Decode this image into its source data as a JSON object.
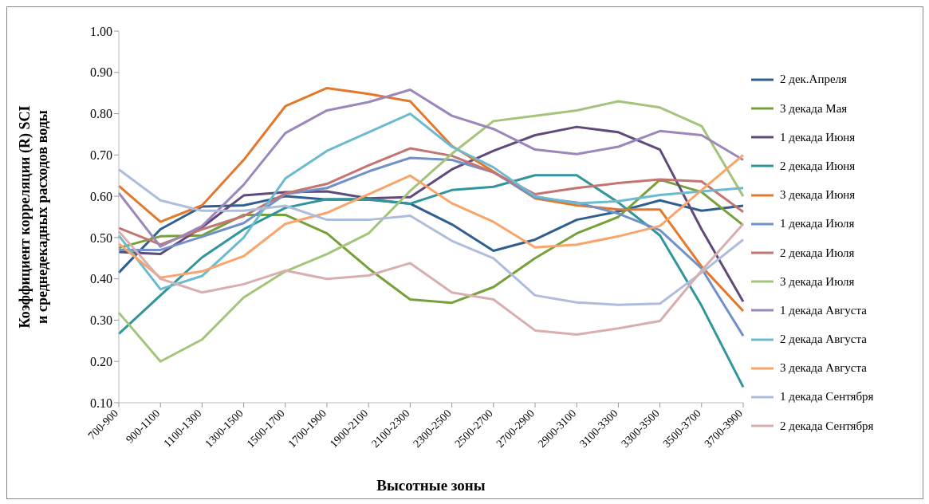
{
  "chart_data": {
    "type": "line",
    "xlabel": "Высотные зоны",
    "ylabel": "Коэффициент корреляции (R) SCI и среднедекадных расходов воды",
    "categories": [
      "700-900",
      "900-1100",
      "1100-1300",
      "1300-1500",
      "1500-1700",
      "1700-1900",
      "1900-2100",
      "2100-2300",
      "2300-2500",
      "2500-2700",
      "2700-2900",
      "2900-3100",
      "3100-3300",
      "3300-3500",
      "3500-3700",
      "3700-3900"
    ],
    "ylim": [
      0.1,
      1.0
    ],
    "yticks": [
      {
        "value": 0.1,
        "label": "0.10"
      },
      {
        "value": 0.2,
        "label": "0.20"
      },
      {
        "value": 0.3,
        "label": "0.30"
      },
      {
        "value": 0.4,
        "label": "0.40"
      },
      {
        "value": 0.5,
        "label": "0.50"
      },
      {
        "value": 0.6,
        "label": "0.60"
      },
      {
        "value": 0.7,
        "label": "0.70"
      },
      {
        "value": 0.8,
        "label": "0.80"
      },
      {
        "value": 0.9,
        "label": "0.90"
      },
      {
        "value": 1.0,
        "label": "1.00"
      }
    ],
    "grid": false,
    "legend": "right",
    "marker": "none",
    "line_style": "solid",
    "series": [
      {
        "name": "2 дек.Апреля",
        "color": "#2e5f8f",
        "values": [
          0.415,
          0.52,
          0.575,
          0.578,
          0.6,
          0.592,
          0.592,
          0.582,
          0.532,
          0.468,
          0.495,
          0.543,
          0.563,
          0.59,
          0.565,
          0.577
        ]
      },
      {
        "name": "3 декада Мая",
        "color": "#77a03b",
        "values": [
          0.475,
          0.503,
          0.505,
          0.555,
          0.555,
          0.51,
          0.425,
          0.35,
          0.342,
          0.38,
          0.45,
          0.51,
          0.55,
          0.64,
          0.61,
          0.53
        ]
      },
      {
        "name": "1 декада Июня",
        "color": "#604a7b",
        "values": [
          0.465,
          0.46,
          0.525,
          0.602,
          0.61,
          0.612,
          0.595,
          0.598,
          0.665,
          0.71,
          0.748,
          0.768,
          0.755,
          0.713,
          0.52,
          0.345
        ]
      },
      {
        "name": "2 декада Июня",
        "color": "#31959c",
        "values": [
          0.267,
          0.36,
          0.452,
          0.52,
          0.572,
          0.593,
          0.593,
          0.582,
          0.615,
          0.623,
          0.651,
          0.651,
          0.585,
          0.505,
          0.335,
          0.138
        ]
      },
      {
        "name": "3 декада Июня",
        "color": "#e4782a",
        "values": [
          0.625,
          0.538,
          0.578,
          0.688,
          0.818,
          0.862,
          0.848,
          0.83,
          0.722,
          0.66,
          0.595,
          0.578,
          0.568,
          0.568,
          0.43,
          0.322
        ]
      },
      {
        "name": "1 декада Июля",
        "color": "#7092c8",
        "values": [
          0.47,
          0.47,
          0.502,
          0.535,
          0.605,
          0.62,
          0.66,
          0.693,
          0.688,
          0.658,
          0.597,
          0.585,
          0.558,
          0.518,
          0.425,
          0.262
        ]
      },
      {
        "name": "2 декада Июля",
        "color": "#c47472",
        "values": [
          0.523,
          0.483,
          0.52,
          0.552,
          0.607,
          0.63,
          0.675,
          0.716,
          0.698,
          0.658,
          0.605,
          0.62,
          0.632,
          0.641,
          0.636,
          0.562
        ]
      },
      {
        "name": "3 декада Июля",
        "color": "#a3c47a",
        "values": [
          0.318,
          0.2,
          0.253,
          0.355,
          0.418,
          0.46,
          0.51,
          0.613,
          0.703,
          0.782,
          0.795,
          0.808,
          0.83,
          0.815,
          0.77,
          0.6
        ]
      },
      {
        "name": "1 декада Августа",
        "color": "#9c87bb",
        "values": [
          0.608,
          0.478,
          0.528,
          0.628,
          0.753,
          0.808,
          0.828,
          0.858,
          0.795,
          0.763,
          0.713,
          0.702,
          0.72,
          0.758,
          0.748,
          0.688
        ]
      },
      {
        "name": "2 декада Августа",
        "color": "#6cbad0",
        "values": [
          0.505,
          0.375,
          0.407,
          0.5,
          0.643,
          0.71,
          0.755,
          0.8,
          0.72,
          0.67,
          0.6,
          0.583,
          0.588,
          0.603,
          0.612,
          0.62
        ]
      },
      {
        "name": "3 декада Августа",
        "color": "#f9a46a",
        "values": [
          0.485,
          0.403,
          0.418,
          0.455,
          0.533,
          0.56,
          0.605,
          0.65,
          0.583,
          0.538,
          0.476,
          0.483,
          0.503,
          0.528,
          0.615,
          0.7
        ]
      },
      {
        "name": "1 декада Сентября",
        "color": "#aebddc",
        "values": [
          0.665,
          0.59,
          0.565,
          0.565,
          0.577,
          0.543,
          0.543,
          0.553,
          0.492,
          0.45,
          0.36,
          0.343,
          0.337,
          0.34,
          0.415,
          0.495
        ]
      },
      {
        "name": "2 декада Сентября",
        "color": "#d9aeae",
        "values": [
          0.515,
          0.4,
          0.367,
          0.387,
          0.42,
          0.4,
          0.408,
          0.438,
          0.367,
          0.35,
          0.275,
          0.265,
          0.28,
          0.298,
          0.42,
          0.533
        ]
      }
    ]
  }
}
